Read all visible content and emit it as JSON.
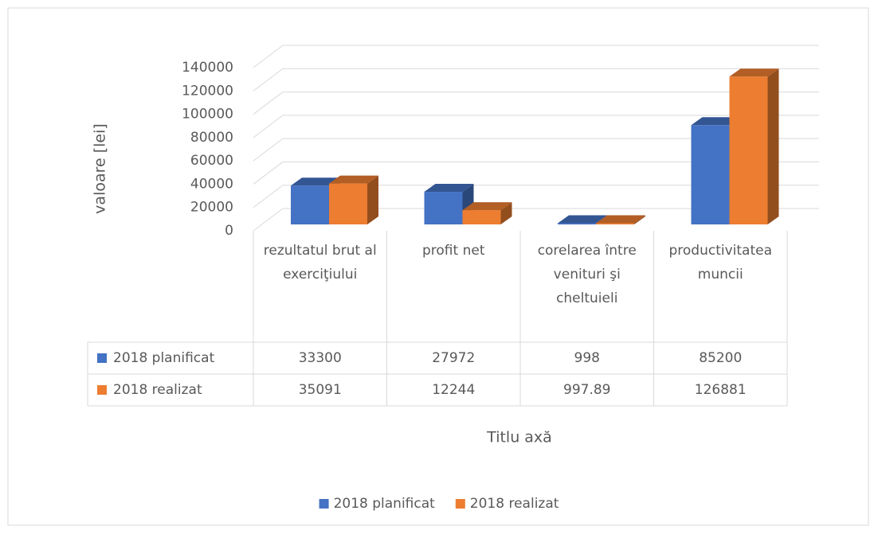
{
  "chart_data": {
    "type": "bar",
    "y_label": "valoare [lei]",
    "x_label": "Titlu axă",
    "categories": [
      "rezultatul brut al exerciţiului",
      "profit net",
      "corelarea între venituri şi cheltuieli",
      "productivitatea muncii"
    ],
    "series": [
      {
        "name": "2018 planificat",
        "color": "#4472c4",
        "values": [
          33300,
          27972,
          998,
          85200
        ]
      },
      {
        "name": "2018 realizat",
        "color": "#ed7d31",
        "values": [
          35091,
          12244,
          997.89,
          126881
        ]
      }
    ],
    "ylim": [
      0,
      140000
    ],
    "yticks": [
      0,
      20000,
      40000,
      60000,
      80000,
      100000,
      120000,
      140000
    ],
    "grid": true,
    "legend": "bottom",
    "data_table": true
  }
}
